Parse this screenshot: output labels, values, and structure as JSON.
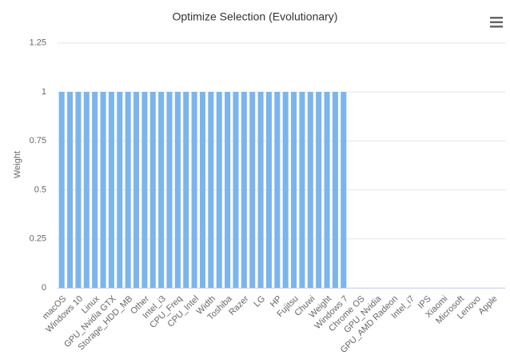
{
  "chart_data": {
    "type": "bar",
    "title": "Optimize Selection (Evolutionary)",
    "y_label": "Weight",
    "categories": [
      "macOS",
      null,
      "Windows 10",
      null,
      "Linux",
      null,
      "GPU_Nvidia GTX",
      null,
      "Storage_HDD_MB",
      null,
      "Other",
      null,
      "Intel_i3",
      null,
      "CPU_Freq",
      null,
      "CPU_Intel",
      null,
      "Width",
      null,
      "Toshiba",
      null,
      "Razer",
      null,
      "LG",
      null,
      "HP",
      null,
      "Fujitsu",
      null,
      "Chuwi",
      null,
      "Weight",
      null,
      "Windows 7",
      null,
      "Chrome OS",
      null,
      "GPU_Nvidia",
      null,
      "GPU_AMD Radeon",
      null,
      "Intel_i7",
      null,
      "IPS",
      null,
      "Xiaomi",
      null,
      "Microsoft",
      null,
      "Lenovo",
      null,
      "Apple",
      null
    ],
    "values": [
      1,
      1,
      1,
      1,
      1,
      1,
      1,
      1,
      1,
      1,
      1,
      1,
      1,
      1,
      1,
      1,
      1,
      1,
      1,
      1,
      1,
      1,
      1,
      1,
      1,
      1,
      1,
      1,
      1,
      1,
      1,
      1,
      1,
      1,
      1,
      0,
      0,
      0,
      0,
      0,
      0,
      0,
      0,
      0,
      0,
      0,
      0,
      0,
      0,
      0,
      0,
      0,
      0,
      0
    ],
    "color": "#7cb5ec",
    "ylim": [
      0,
      1.25
    ],
    "yticks": [
      0,
      0.25,
      0.5,
      0.75,
      1,
      1.25
    ],
    "grid": true
  }
}
